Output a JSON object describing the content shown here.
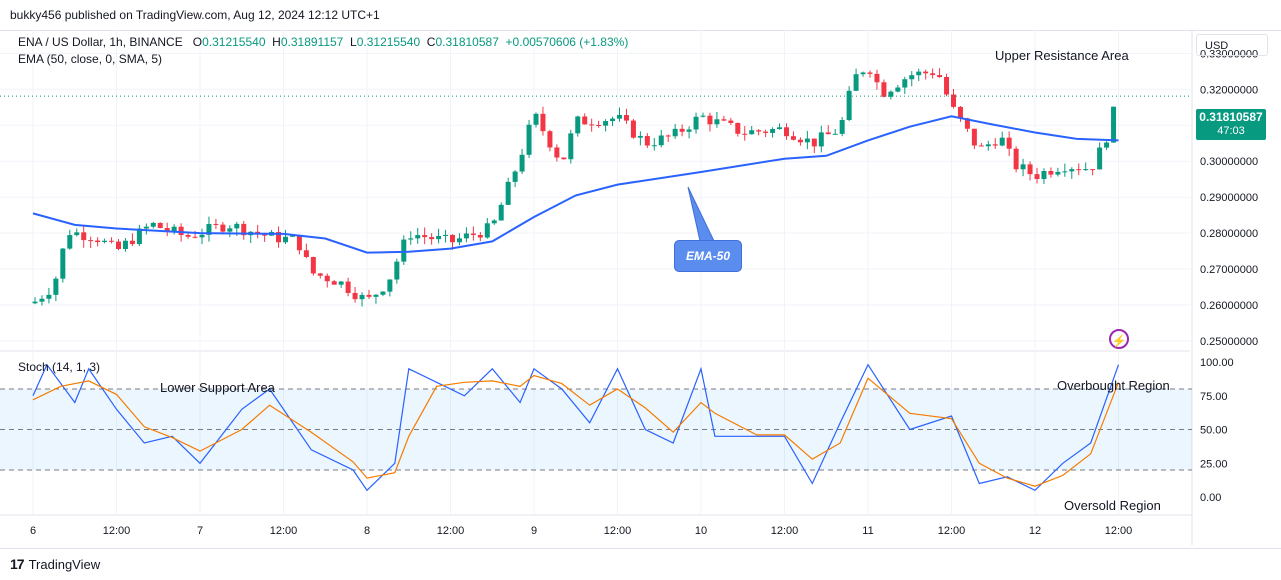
{
  "header": {
    "publisher_line": "bukky456 published on TradingView.com, Aug 12, 2024 12:12 UTC+1"
  },
  "legend": {
    "symbol": "ENA / US Dollar, 1h, BINANCE",
    "o_label": "O",
    "o": "0.31215540",
    "h_label": "H",
    "h": "0.31891157",
    "l_label": "L",
    "l": "0.31215540",
    "c_label": "C",
    "c": "0.31810587",
    "change": "+0.00570606 (+1.83%)",
    "ema": "EMA (50, close, 0, SMA, 5)",
    "stoch": "Stoch (14, 1, 3)"
  },
  "annotations": {
    "upper_resistance": "Upper Resistance Area",
    "lower_support": "Lower Support Area",
    "overbought": "Overbought Region",
    "oversold": "Oversold Region",
    "ema_callout": "EMA-50"
  },
  "price_axis": {
    "currency": "USD",
    "ticks": [
      "0.33000000",
      "0.32000000",
      "0.31000000",
      "0.30000000",
      "0.29000000",
      "0.28000000",
      "0.27000000",
      "0.26000000",
      "0.25000000"
    ],
    "last_price": "0.31810587",
    "countdown": "47:03"
  },
  "stoch_axis": {
    "ticks": [
      "100.00",
      "75.00",
      "50.00",
      "25.00",
      "0.00"
    ]
  },
  "time_axis": {
    "ticks": [
      "6",
      "12:00",
      "7",
      "12:00",
      "8",
      "12:00",
      "9",
      "12:00",
      "10",
      "12:00",
      "11",
      "12:00",
      "12",
      "12:00"
    ]
  },
  "footer": {
    "brand": "TradingView",
    "brand_mark": "17"
  },
  "colors": {
    "up": "#089981",
    "down": "#f23645",
    "ema": "#2962ff",
    "stoch_k": "#2962ff",
    "stoch_d": "#f57c00",
    "band": "#2196f3",
    "callout": "#5b8def",
    "icon": "#9c27b0"
  },
  "icons": {
    "alert": "lightning-icon"
  },
  "chart_data": [
    {
      "type": "candlestick",
      "title": "ENA / US Dollar, 1h, BINANCE",
      "x_range": [
        "Aug 6",
        "Aug 12 12:00"
      ],
      "ylim": [
        0.25,
        0.335
      ],
      "y_scale": "linear",
      "grid": true,
      "close_path": [
        {
          "x": "Aug 6 00:00",
          "y": 0.2605
        },
        {
          "x": "Aug 6 03:00",
          "y": 0.2655
        },
        {
          "x": "Aug 6 05:00",
          "y": 0.2805
        },
        {
          "x": "Aug 6 09:00",
          "y": 0.279
        },
        {
          "x": "Aug 6 12:00",
          "y": 0.275
        },
        {
          "x": "Aug 6 17:00",
          "y": 0.2825
        },
        {
          "x": "Aug 6 22:00",
          "y": 0.279
        },
        {
          "x": "Aug 7 04:00",
          "y": 0.2825
        },
        {
          "x": "Aug 7 10:00",
          "y": 0.279
        },
        {
          "x": "Aug 7 14:00",
          "y": 0.278
        },
        {
          "x": "Aug 7 16:00",
          "y": 0.269
        },
        {
          "x": "Aug 7 20:00",
          "y": 0.2665
        },
        {
          "x": "Aug 8 00:00",
          "y": 0.261
        },
        {
          "x": "Aug 8 03:00",
          "y": 0.2665
        },
        {
          "x": "Aug 8 06:00",
          "y": 0.28
        },
        {
          "x": "Aug 8 12:00",
          "y": 0.2775
        },
        {
          "x": "Aug 8 18:00",
          "y": 0.2815
        },
        {
          "x": "Aug 8 22:00",
          "y": 0.301
        },
        {
          "x": "Aug 9 00:00",
          "y": 0.313
        },
        {
          "x": "Aug 9 04:00",
          "y": 0.2995
        },
        {
          "x": "Aug 9 06:00",
          "y": 0.311
        },
        {
          "x": "Aug 9 12:00",
          "y": 0.312
        },
        {
          "x": "Aug 9 16:00",
          "y": 0.305
        },
        {
          "x": "Aug 9 20:00",
          "y": 0.307
        },
        {
          "x": "Aug 10 00:00",
          "y": 0.3125
        },
        {
          "x": "Aug 10 06:00",
          "y": 0.308
        },
        {
          "x": "Aug 10 12:00",
          "y": 0.309
        },
        {
          "x": "Aug 10 16:00",
          "y": 0.305
        },
        {
          "x": "Aug 10 20:00",
          "y": 0.309
        },
        {
          "x": "Aug 10 22:00",
          "y": 0.323
        },
        {
          "x": "Aug 11 00:00",
          "y": 0.327
        },
        {
          "x": "Aug 11 02:00",
          "y": 0.319
        },
        {
          "x": "Aug 11 06:00",
          "y": 0.324
        },
        {
          "x": "Aug 11 10:00",
          "y": 0.325
        },
        {
          "x": "Aug 11 12:00",
          "y": 0.315
        },
        {
          "x": "Aug 11 16:00",
          "y": 0.303
        },
        {
          "x": "Aug 11 19:00",
          "y": 0.307
        },
        {
          "x": "Aug 11 21:00",
          "y": 0.299
        },
        {
          "x": "Aug 12 00:00",
          "y": 0.296
        },
        {
          "x": "Aug 12 04:00",
          "y": 0.299
        },
        {
          "x": "Aug 12 08:00",
          "y": 0.298
        },
        {
          "x": "Aug 12 10:00",
          "y": 0.305
        },
        {
          "x": "Aug 12 12:00",
          "y": 0.3181
        }
      ],
      "series": [
        {
          "name": "EMA (50, close, 0, SMA, 5)",
          "type": "line",
          "points": [
            {
              "x": "Aug 6 00:00",
              "y": 0.2855
            },
            {
              "x": "Aug 6 06:00",
              "y": 0.2823
            },
            {
              "x": "Aug 6 12:00",
              "y": 0.2813
            },
            {
              "x": "Aug 7 00:00",
              "y": 0.28
            },
            {
              "x": "Aug 7 12:00",
              "y": 0.2798
            },
            {
              "x": "Aug 7 18:00",
              "y": 0.2785
            },
            {
              "x": "Aug 8 00:00",
              "y": 0.2746
            },
            {
              "x": "Aug 8 06:00",
              "y": 0.2748
            },
            {
              "x": "Aug 8 12:00",
              "y": 0.2757
            },
            {
              "x": "Aug 8 18:00",
              "y": 0.2777
            },
            {
              "x": "Aug 9 00:00",
              "y": 0.2845
            },
            {
              "x": "Aug 9 06:00",
              "y": 0.2905
            },
            {
              "x": "Aug 9 12:00",
              "y": 0.2935
            },
            {
              "x": "Aug 10 00:00",
              "y": 0.297
            },
            {
              "x": "Aug 10 12:00",
              "y": 0.3007
            },
            {
              "x": "Aug 10 18:00",
              "y": 0.3015
            },
            {
              "x": "Aug 11 00:00",
              "y": 0.3058
            },
            {
              "x": "Aug 11 06:00",
              "y": 0.3096
            },
            {
              "x": "Aug 11 12:00",
              "y": 0.3125
            },
            {
              "x": "Aug 11 18:00",
              "y": 0.3102
            },
            {
              "x": "Aug 12 00:00",
              "y": 0.308
            },
            {
              "x": "Aug 12 06:00",
              "y": 0.3062
            },
            {
              "x": "Aug 12 12:00",
              "y": 0.3058
            }
          ]
        }
      ]
    },
    {
      "type": "line",
      "title": "Stoch (14, 1, 3)",
      "ylim": [
        0,
        100
      ],
      "bands": {
        "upper": 80,
        "middle": 50,
        "lower": 20
      },
      "series": [
        {
          "name": "%K",
          "points": [
            {
              "x": "Aug 6 00:00",
              "y": 75
            },
            {
              "x": "Aug 6 02:00",
              "y": 98
            },
            {
              "x": "Aug 6 06:00",
              "y": 70
            },
            {
              "x": "Aug 6 08:00",
              "y": 95
            },
            {
              "x": "Aug 6 12:00",
              "y": 65
            },
            {
              "x": "Aug 6 16:00",
              "y": 40
            },
            {
              "x": "Aug 6 20:00",
              "y": 45
            },
            {
              "x": "Aug 7 00:00",
              "y": 25
            },
            {
              "x": "Aug 7 06:00",
              "y": 65
            },
            {
              "x": "Aug 7 10:00",
              "y": 80
            },
            {
              "x": "Aug 7 16:00",
              "y": 35
            },
            {
              "x": "Aug 7 22:00",
              "y": 20
            },
            {
              "x": "Aug 8 00:00",
              "y": 5
            },
            {
              "x": "Aug 8 04:00",
              "y": 25
            },
            {
              "x": "Aug 8 06:00",
              "y": 95
            },
            {
              "x": "Aug 8 10:00",
              "y": 85
            },
            {
              "x": "Aug 8 14:00",
              "y": 75
            },
            {
              "x": "Aug 8 18:00",
              "y": 95
            },
            {
              "x": "Aug 8 22:00",
              "y": 70
            },
            {
              "x": "Aug 9 00:00",
              "y": 95
            },
            {
              "x": "Aug 9 04:00",
              "y": 80
            },
            {
              "x": "Aug 9 08:00",
              "y": 55
            },
            {
              "x": "Aug 9 12:00",
              "y": 95
            },
            {
              "x": "Aug 9 16:00",
              "y": 50
            },
            {
              "x": "Aug 9 20:00",
              "y": 40
            },
            {
              "x": "Aug 10 00:00",
              "y": 95
            },
            {
              "x": "Aug 10 02:00",
              "y": 45
            },
            {
              "x": "Aug 10 08:00",
              "y": 45
            },
            {
              "x": "Aug 10 12:00",
              "y": 45
            },
            {
              "x": "Aug 10 16:00",
              "y": 10
            },
            {
              "x": "Aug 10 20:00",
              "y": 55
            },
            {
              "x": "Aug 11 00:00",
              "y": 98
            },
            {
              "x": "Aug 11 06:00",
              "y": 50
            },
            {
              "x": "Aug 11 12:00",
              "y": 60
            },
            {
              "x": "Aug 11 16:00",
              "y": 10
            },
            {
              "x": "Aug 11 20:00",
              "y": 15
            },
            {
              "x": "Aug 12 00:00",
              "y": 5
            },
            {
              "x": "Aug 12 04:00",
              "y": 25
            },
            {
              "x": "Aug 12 08:00",
              "y": 40
            },
            {
              "x": "Aug 12 12:00",
              "y": 98
            }
          ]
        },
        {
          "name": "%D",
          "points": [
            {
              "x": "Aug 6 00:00",
              "y": 72
            },
            {
              "x": "Aug 6 04:00",
              "y": 82
            },
            {
              "x": "Aug 6 08:00",
              "y": 86
            },
            {
              "x": "Aug 6 12:00",
              "y": 76
            },
            {
              "x": "Aug 6 16:00",
              "y": 52
            },
            {
              "x": "Aug 6 20:00",
              "y": 44
            },
            {
              "x": "Aug 7 00:00",
              "y": 34
            },
            {
              "x": "Aug 7 06:00",
              "y": 50
            },
            {
              "x": "Aug 7 10:00",
              "y": 68
            },
            {
              "x": "Aug 7 16:00",
              "y": 48
            },
            {
              "x": "Aug 7 22:00",
              "y": 26
            },
            {
              "x": "Aug 8 00:00",
              "y": 14
            },
            {
              "x": "Aug 8 04:00",
              "y": 18
            },
            {
              "x": "Aug 8 06:00",
              "y": 45
            },
            {
              "x": "Aug 8 10:00",
              "y": 82
            },
            {
              "x": "Aug 8 14:00",
              "y": 85
            },
            {
              "x": "Aug 8 18:00",
              "y": 86
            },
            {
              "x": "Aug 8 22:00",
              "y": 82
            },
            {
              "x": "Aug 9 00:00",
              "y": 90
            },
            {
              "x": "Aug 9 04:00",
              "y": 84
            },
            {
              "x": "Aug 9 08:00",
              "y": 68
            },
            {
              "x": "Aug 9 12:00",
              "y": 80
            },
            {
              "x": "Aug 9 16:00",
              "y": 66
            },
            {
              "x": "Aug 9 20:00",
              "y": 48
            },
            {
              "x": "Aug 10 00:00",
              "y": 70
            },
            {
              "x": "Aug 10 02:00",
              "y": 62
            },
            {
              "x": "Aug 10 08:00",
              "y": 46
            },
            {
              "x": "Aug 10 12:00",
              "y": 46
            },
            {
              "x": "Aug 10 16:00",
              "y": 28
            },
            {
              "x": "Aug 10 20:00",
              "y": 40
            },
            {
              "x": "Aug 11 00:00",
              "y": 88
            },
            {
              "x": "Aug 11 06:00",
              "y": 62
            },
            {
              "x": "Aug 11 12:00",
              "y": 58
            },
            {
              "x": "Aug 11 16:00",
              "y": 25
            },
            {
              "x": "Aug 11 20:00",
              "y": 14
            },
            {
              "x": "Aug 12 00:00",
              "y": 8
            },
            {
              "x": "Aug 12 04:00",
              "y": 16
            },
            {
              "x": "Aug 12 08:00",
              "y": 32
            },
            {
              "x": "Aug 12 12:00",
              "y": 85
            }
          ]
        }
      ]
    }
  ]
}
